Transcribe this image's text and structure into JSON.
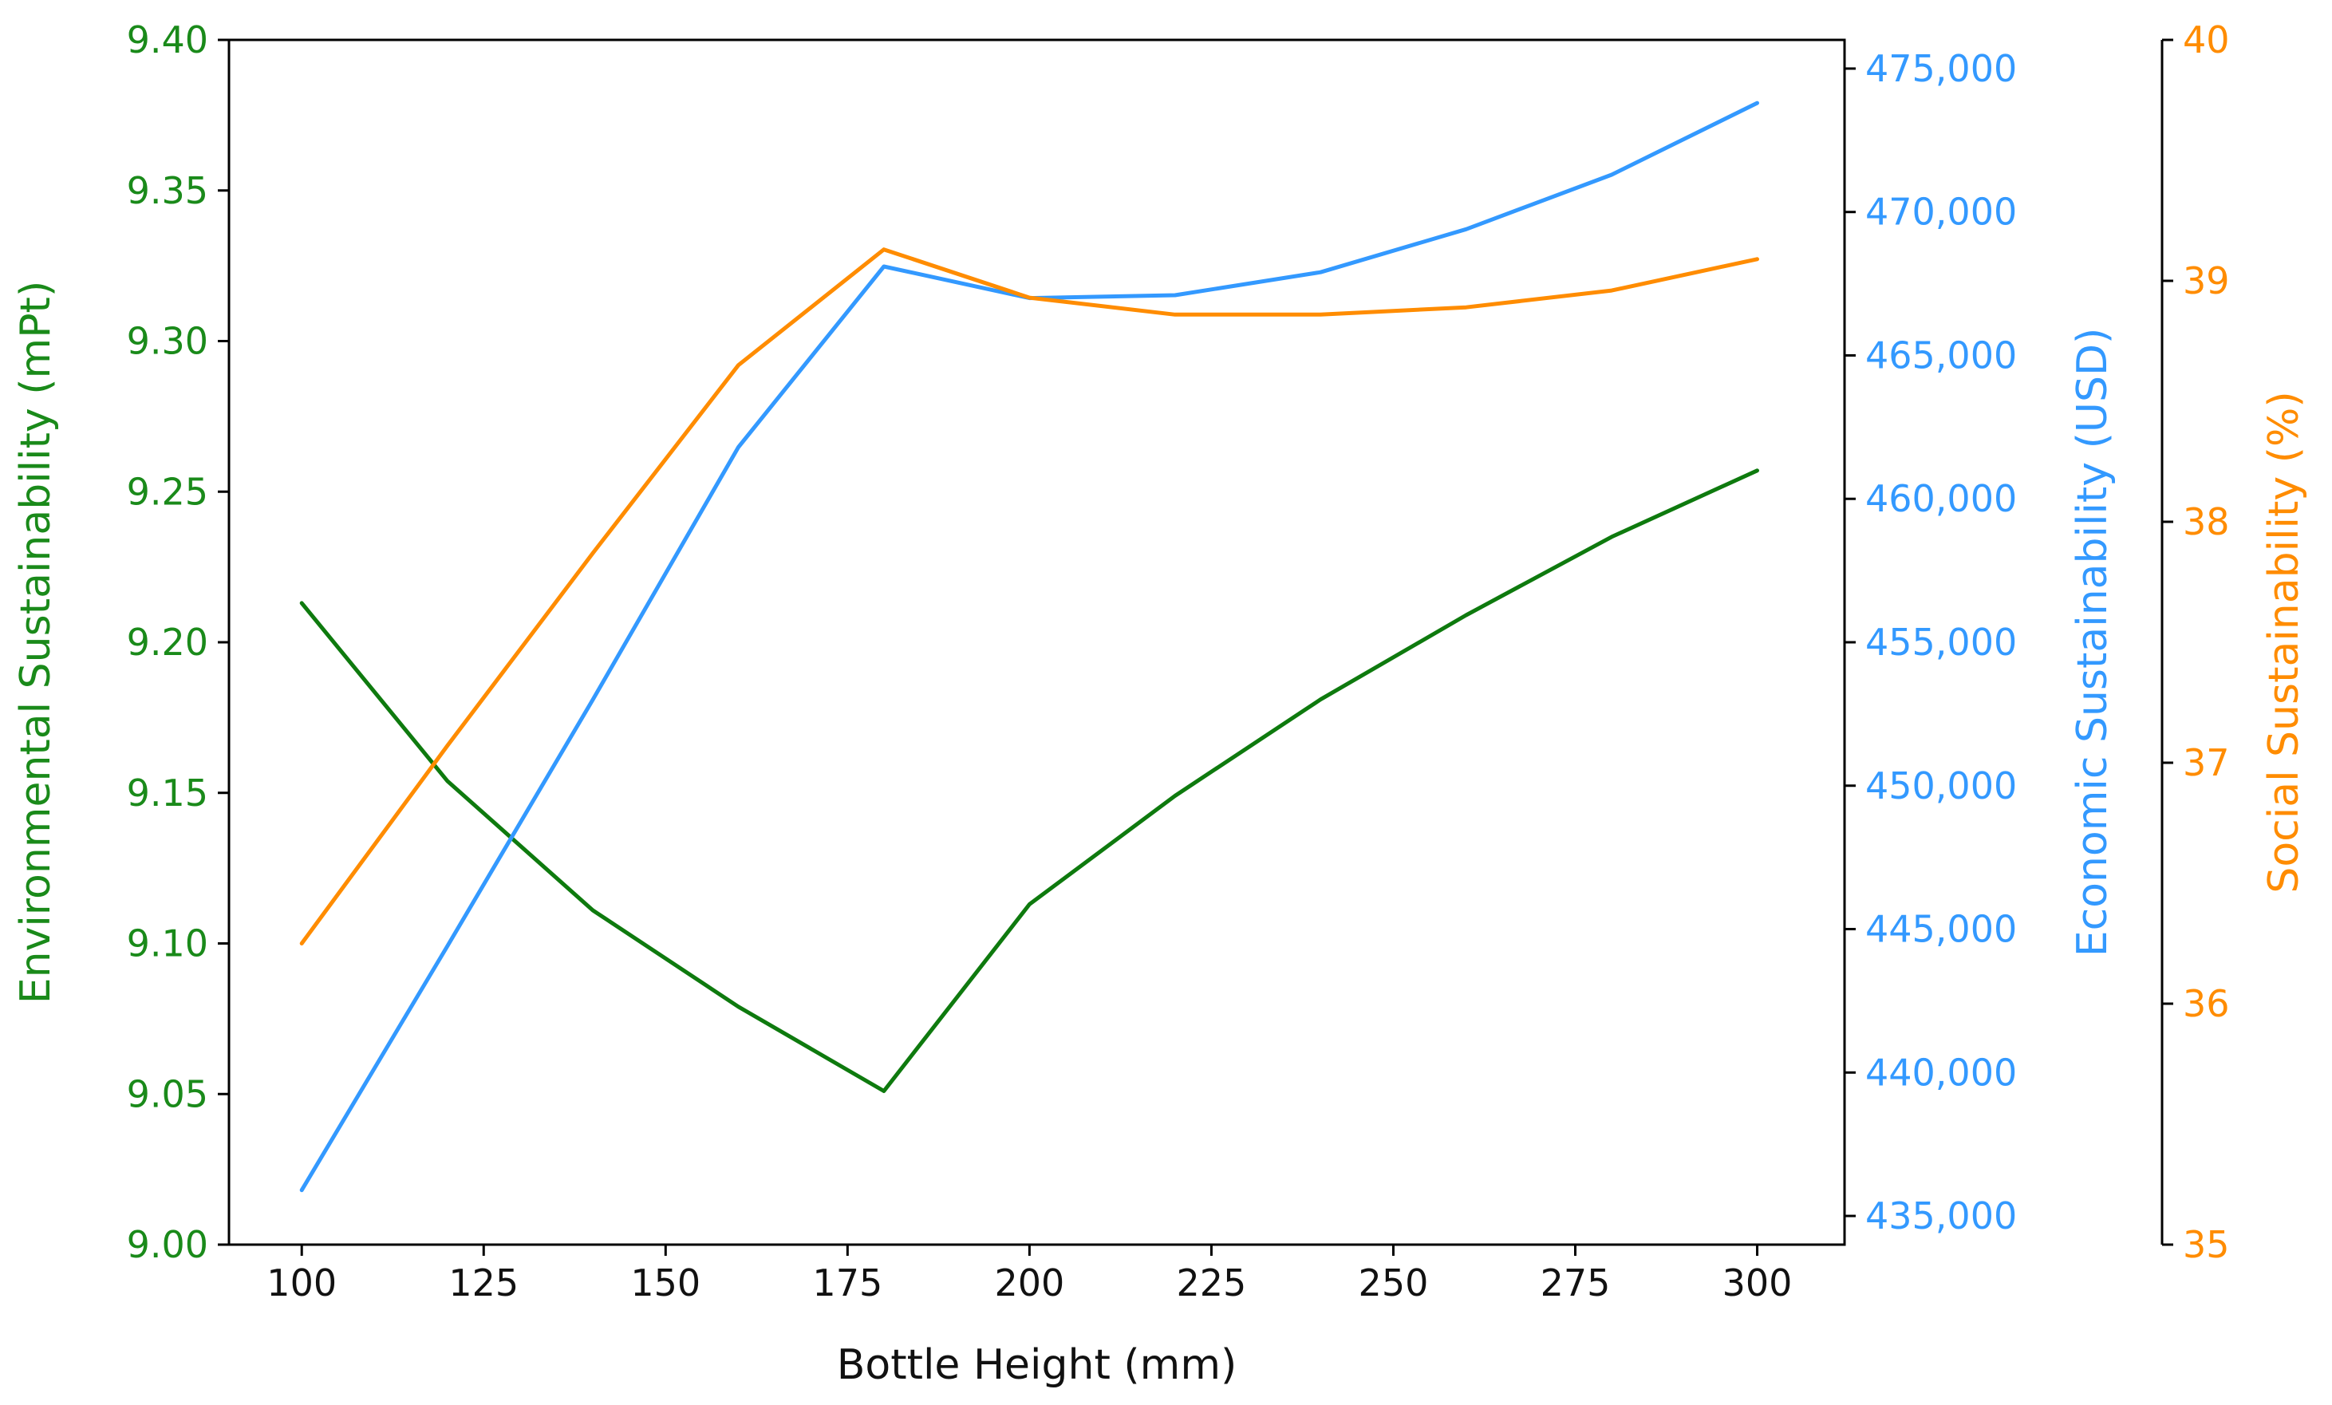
{
  "chart_data": {
    "type": "line",
    "xlabel": "Bottle Height (mm)",
    "xlim": [
      90,
      312
    ],
    "x_ticks": [
      100,
      125,
      150,
      175,
      200,
      225,
      250,
      275,
      300
    ],
    "x_tick_labels": [
      "100",
      "125",
      "150",
      "175",
      "200",
      "225",
      "250",
      "275",
      "300"
    ],
    "axes": [
      {
        "id": "env",
        "side": "left",
        "label": "Environmental Sustainability (mPt)",
        "color": "#1a8a1a",
        "ylim": [
          9.0,
          9.4
        ],
        "ticks": [
          9.0,
          9.05,
          9.1,
          9.15,
          9.2,
          9.25,
          9.3,
          9.35,
          9.4
        ],
        "tick_labels": [
          "9.00",
          "9.05",
          "9.10",
          "9.15",
          "9.20",
          "9.25",
          "9.30",
          "9.35",
          "9.40"
        ]
      },
      {
        "id": "econ",
        "side": "right",
        "label": "Economic Sustainability (USD)",
        "color": "#3399ff",
        "ylim": [
          434000,
          476000
        ],
        "ticks": [
          435000,
          440000,
          445000,
          450000,
          455000,
          460000,
          465000,
          470000,
          475000
        ],
        "tick_labels": [
          "435,000",
          "440,000",
          "445,000",
          "450,000",
          "455,000",
          "460,000",
          "465,000",
          "470,000",
          "475,000"
        ]
      },
      {
        "id": "social",
        "side": "right-outer",
        "label": "Social Sustainability (%)",
        "color": "#ff8c00",
        "ylim": [
          35,
          40
        ],
        "ticks": [
          35,
          36,
          37,
          38,
          39,
          40
        ],
        "tick_labels": [
          "35",
          "36",
          "37",
          "38",
          "39",
          "40"
        ]
      }
    ],
    "series": [
      {
        "axis": "env",
        "color": "#0e7a0e",
        "x": [
          100,
          120,
          140,
          160,
          180,
          200,
          220,
          240,
          260,
          280,
          300
        ],
        "values": [
          9.213,
          9.154,
          9.111,
          9.079,
          9.051,
          9.113,
          9.149,
          9.181,
          9.209,
          9.235,
          9.257
        ]
      },
      {
        "axis": "econ",
        "color": "#3399ff",
        "x": [
          100,
          120,
          140,
          160,
          180,
          200,
          220,
          240,
          260,
          280,
          300
        ],
        "values": [
          435900,
          444400,
          453000,
          461800,
          468100,
          467000,
          467100,
          467900,
          469400,
          471300,
          473800
        ]
      },
      {
        "axis": "social",
        "color": "#ff8c00",
        "x": [
          100,
          120,
          140,
          160,
          180,
          200,
          220,
          240,
          260,
          280,
          300
        ],
        "values": [
          36.25,
          37.07,
          37.87,
          38.65,
          39.13,
          38.93,
          38.86,
          38.86,
          38.89,
          38.96,
          39.09
        ]
      }
    ]
  }
}
